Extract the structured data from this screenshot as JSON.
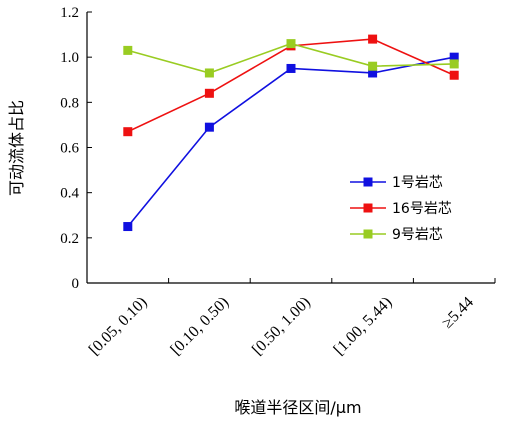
{
  "chart_data": {
    "type": "line",
    "title": "",
    "xlabel": "喉道半径区间/μm",
    "ylabel": "可动流体占比",
    "categories": [
      "[0.05, 0.10)",
      "[0.10, 0.50)",
      "[0.50, 1.00)",
      "[1.00, 5.44)",
      "≥5.44"
    ],
    "ylim": [
      0,
      1.2
    ],
    "yticks": [
      "0",
      "0.2",
      "0.4",
      "0.6",
      "0.8",
      "1.0",
      "1.2"
    ],
    "grid": false,
    "legend_position": "center-right",
    "series": [
      {
        "name": "1号岩芯",
        "color": "#1010e0",
        "values": [
          0.25,
          0.69,
          0.95,
          0.93,
          1.0
        ]
      },
      {
        "name": "16号岩芯",
        "color": "#ee1111",
        "values": [
          0.67,
          0.84,
          1.05,
          1.08,
          0.92
        ]
      },
      {
        "name": "9号岩芯",
        "color": "#99cc22",
        "values": [
          1.03,
          0.93,
          1.06,
          0.96,
          0.97
        ]
      }
    ]
  }
}
